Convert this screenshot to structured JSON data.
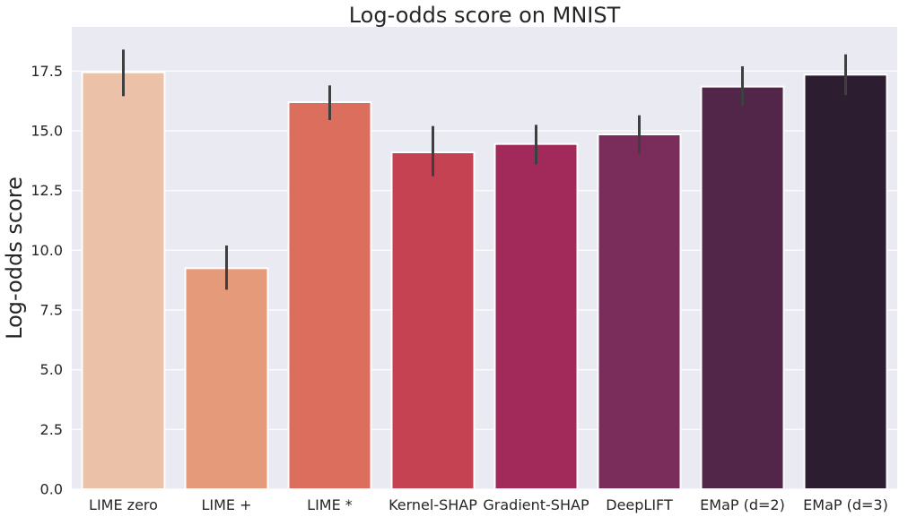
{
  "chart_data": {
    "type": "bar",
    "title": "Log-odds score on MNIST",
    "xlabel": "",
    "ylabel": "Log-odds score",
    "ylim": [
      0,
      19.35
    ],
    "yticks": [
      "0.0",
      "2.5",
      "5.0",
      "7.5",
      "10.0",
      "12.5",
      "15.0",
      "17.5"
    ],
    "ytick_values": [
      0,
      2.5,
      5,
      7.5,
      10,
      12.5,
      15,
      17.5
    ],
    "grid": true,
    "categories": [
      "LIME zero",
      "LIME +",
      "LIME *",
      "Kernel-SHAP",
      "Gradient-SHAP",
      "DeepLIFT",
      "EMaP (d=2)",
      "EMaP (d=3)"
    ],
    "values": [
      17.45,
      9.25,
      16.2,
      14.1,
      14.45,
      14.85,
      16.85,
      17.35
    ],
    "error_low": [
      16.45,
      8.35,
      15.45,
      13.1,
      13.6,
      14.05,
      16.05,
      16.5
    ],
    "error_high": [
      18.4,
      10.2,
      16.9,
      15.2,
      15.25,
      15.65,
      17.7,
      18.2
    ],
    "colors": [
      "#ebc2a8",
      "#e59a79",
      "#dc6e5d",
      "#c54253",
      "#a22a5b",
      "#7a2c5a",
      "#522648",
      "#2c1d31"
    ],
    "background": "#eaeaf2"
  }
}
